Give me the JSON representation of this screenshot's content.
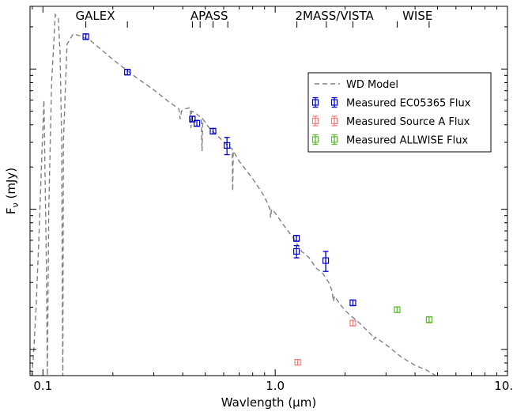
{
  "chart_data": {
    "type": "scatter",
    "xlabel": "Wavlength (μm)",
    "ylabel": "Fν (mJy)",
    "ylabel_main": "F",
    "ylabel_sub": "ν",
    "ylabel_unit": " (mJy)",
    "xscale": "log",
    "yscale": "log",
    "xlim": [
      0.088,
      10.0
    ],
    "ylim": [
      0.0065,
      2.8
    ],
    "x_ticks": [
      {
        "value": 0.1,
        "label": "0.1"
      },
      {
        "value": 1.0,
        "label": "1.0"
      },
      {
        "value": 10.0,
        "label": "10.0"
      }
    ],
    "y_major_ticks": [
      0.01,
      0.1,
      1.0
    ],
    "legend": {
      "position": "upper-right",
      "entries": [
        {
          "key": "model",
          "label": "WD Model",
          "color": "#808080",
          "style": "dashed-line"
        },
        {
          "key": "ec",
          "label": "Measured EC05365 Flux",
          "color": "#0000cc",
          "style": "marker"
        },
        {
          "key": "srcA",
          "label": "Measured Source A Flux",
          "color": "#f08080",
          "style": "marker"
        },
        {
          "key": "wise",
          "label": "Measured ALLWISE Flux",
          "color": "#5db82e",
          "style": "marker"
        }
      ]
    },
    "surveys": [
      {
        "label": "GALEX",
        "label_x": 0.168,
        "ticks": [
          0.153,
          0.231
        ]
      },
      {
        "label": "APASS",
        "label_x": 0.52,
        "ticks": [
          0.44,
          0.475,
          0.54,
          0.625
        ]
      },
      {
        "label": "2MASS/VISTA",
        "label_x": 1.8,
        "ticks": [
          1.24,
          1.66,
          2.16
        ]
      },
      {
        "label": "WISE",
        "label_x": 4.1,
        "ticks": [
          3.35,
          4.6
        ]
      }
    ],
    "series": [
      {
        "key": "ec",
        "name": "Measured EC05365 Flux",
        "color": "#0000cc",
        "points": [
          {
            "x": 0.153,
            "y": 1.7,
            "yerr": 0.05
          },
          {
            "x": 0.231,
            "y": 0.95,
            "yerr": 0.025
          },
          {
            "x": 0.44,
            "y": 0.44,
            "yerr": 0.02
          },
          {
            "x": 0.46,
            "y": 0.41,
            "yerr": 0.02
          },
          {
            "x": 0.54,
            "y": 0.36,
            "yerr": 0.01
          },
          {
            "x": 0.62,
            "y": 0.285,
            "yerr": 0.04
          },
          {
            "x": 1.235,
            "y": 0.062,
            "yerr": 0.003
          },
          {
            "x": 1.235,
            "y": 0.05,
            "yerr": 0.005
          },
          {
            "x": 1.65,
            "y": 0.043,
            "yerr": 0.007
          },
          {
            "x": 2.16,
            "y": 0.0215,
            "yerr": 0.001
          }
        ]
      },
      {
        "key": "srcA",
        "name": "Measured Source A Flux",
        "color": "#f08080",
        "points": [
          {
            "x": 1.25,
            "y": 0.0081,
            "yerr": 0.0003
          },
          {
            "x": 2.16,
            "y": 0.0154,
            "yerr": 0.0006
          }
        ]
      },
      {
        "key": "wise",
        "name": "Measured ALLWISE Flux",
        "color": "#5db82e",
        "points": [
          {
            "x": 3.35,
            "y": 0.0192,
            "yerr": 0.0008
          },
          {
            "x": 4.6,
            "y": 0.0163,
            "yerr": 0.0008
          }
        ]
      }
    ],
    "model": {
      "name": "WD Model",
      "color": "#808080",
      "points": [
        [
          0.0895,
          0.0065
        ],
        [
          0.091,
          0.009
        ],
        [
          0.0935,
          0.02
        ],
        [
          0.096,
          0.06
        ],
        [
          0.099,
          0.25
        ],
        [
          0.101,
          0.6
        ],
        [
          0.1035,
          0.04
        ],
        [
          0.1045,
          0.0065
        ],
        [
          0.106,
          0.1
        ],
        [
          0.109,
          0.8
        ],
        [
          0.113,
          2.45
        ],
        [
          0.1165,
          2.3
        ],
        [
          0.1185,
          1.3
        ],
        [
          0.1205,
          0.3
        ],
        [
          0.1212,
          0.02
        ],
        [
          0.1218,
          0.0065
        ],
        [
          0.1225,
          0.3
        ],
        [
          0.127,
          1.5
        ],
        [
          0.135,
          1.78
        ],
        [
          0.145,
          1.72
        ],
        [
          0.16,
          1.6
        ],
        [
          0.2,
          1.17
        ],
        [
          0.25,
          0.88
        ],
        [
          0.3,
          0.71
        ],
        [
          0.35,
          0.58
        ],
        [
          0.385,
          0.52
        ],
        [
          0.39,
          0.44
        ],
        [
          0.395,
          0.5
        ],
        [
          0.41,
          0.52
        ],
        [
          0.43,
          0.53
        ],
        [
          0.434,
          0.38
        ],
        [
          0.437,
          0.5
        ],
        [
          0.45,
          0.49
        ],
        [
          0.48,
          0.45
        ],
        [
          0.484,
          0.26
        ],
        [
          0.488,
          0.44
        ],
        [
          0.52,
          0.38
        ],
        [
          0.58,
          0.32
        ],
        [
          0.63,
          0.28
        ],
        [
          0.653,
          0.27
        ],
        [
          0.656,
          0.135
        ],
        [
          0.66,
          0.26
        ],
        [
          0.7,
          0.22
        ],
        [
          0.8,
          0.165
        ],
        [
          0.9,
          0.123
        ],
        [
          0.95,
          0.1
        ],
        [
          0.955,
          0.087
        ],
        [
          0.965,
          0.1
        ],
        [
          1.0,
          0.094
        ],
        [
          1.1,
          0.075
        ],
        [
          1.2,
          0.062
        ],
        [
          1.3,
          0.05
        ],
        [
          1.4,
          0.045
        ],
        [
          1.5,
          0.038
        ],
        [
          1.6,
          0.035
        ],
        [
          1.7,
          0.03
        ],
        [
          1.76,
          0.026
        ],
        [
          1.78,
          0.022
        ],
        [
          1.8,
          0.024
        ],
        [
          1.9,
          0.021
        ],
        [
          2.0,
          0.019
        ],
        [
          2.1,
          0.0175
        ],
        [
          2.2,
          0.0165
        ],
        [
          2.3,
          0.0155
        ],
        [
          2.5,
          0.0135
        ],
        [
          2.62,
          0.0125
        ],
        [
          2.66,
          0.0118
        ],
        [
          2.7,
          0.0122
        ],
        [
          3.0,
          0.0108
        ],
        [
          3.5,
          0.0088
        ],
        [
          4.0,
          0.0077
        ],
        [
          4.5,
          0.0071
        ],
        [
          4.9,
          0.0065
        ]
      ]
    }
  }
}
